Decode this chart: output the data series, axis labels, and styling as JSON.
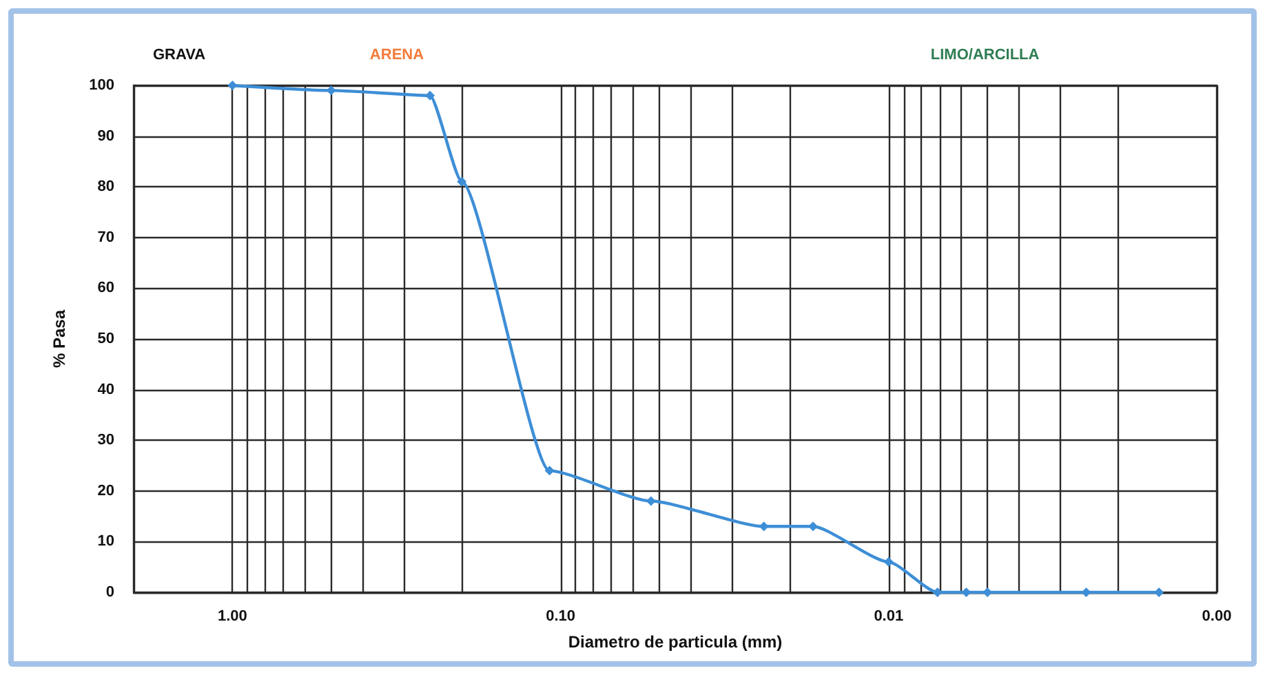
{
  "chart_data": {
    "type": "line",
    "xlabel": "Diametro de particula (mm)",
    "ylabel": "% Pasa",
    "annotations": [
      "GRAVA",
      "ARENA",
      "LIMO/ARCILLA"
    ],
    "x": [
      1,
      0.5,
      0.25,
      0.2,
      0.108,
      0.053,
      0.024,
      0.017,
      0.01,
      0.0071,
      0.0058,
      0.005,
      0.0025,
      0.0015
    ],
    "series": [
      {
        "color": "#3d8ed6",
        "values": [
          100,
          99,
          98,
          81,
          24,
          18,
          13,
          13,
          6,
          0,
          0,
          0,
          0,
          0
        ]
      }
    ],
    "log": "x",
    "xlim": [
      2,
      0.001
    ],
    "xticks": [
      {
        "value": 1,
        "label": "1.00"
      },
      {
        "value": 0.9,
        "label": null
      },
      {
        "value": 0.8,
        "label": null
      },
      {
        "value": 0.7,
        "label": null
      },
      {
        "value": 0.6,
        "label": null
      },
      {
        "value": 0.5,
        "label": null
      },
      {
        "value": 0.4,
        "label": null
      },
      {
        "value": 0.3,
        "label": null
      },
      {
        "value": 0.2,
        "label": null
      },
      {
        "value": 0.1,
        "label": "0.10"
      },
      {
        "value": 0.09,
        "label": null
      },
      {
        "value": 0.08,
        "label": null
      },
      {
        "value": 0.07,
        "label": null
      },
      {
        "value": 0.06,
        "label": null
      },
      {
        "value": 0.05,
        "label": null
      },
      {
        "value": 0.04,
        "label": null
      },
      {
        "value": 0.03,
        "label": null
      },
      {
        "value": 0.02,
        "label": null
      },
      0.01,
      {
        "value": 0.009,
        "label": null
      },
      {
        "value": 0.008,
        "label": null
      },
      {
        "value": 0.007,
        "label": null
      },
      {
        "value": 0.006,
        "label": null
      },
      {
        "value": 0.005,
        "label": null
      },
      {
        "value": 0.004,
        "label": null
      },
      {
        "value": 0.003,
        "label": null
      },
      {
        "value": 0.002,
        "label": null
      },
      {
        "value": 0.001,
        "label": "0.00"
      }
    ],
    "ylim": [
      0,
      100
    ],
    "yticks": [
      0,
      10,
      20,
      30,
      40,
      50,
      60,
      70,
      80,
      90,
      100
    ],
    "grid": true,
    "marker": "diamond",
    "line_style": "solid"
  }
}
